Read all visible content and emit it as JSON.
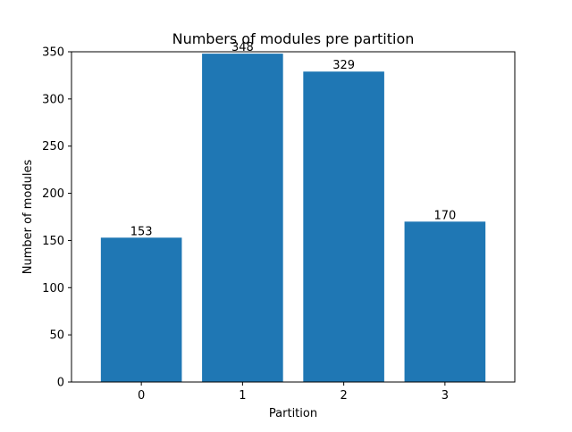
{
  "chart_data": {
    "type": "bar",
    "title": "Numbers of modules pre partition",
    "xlabel": "Partition",
    "ylabel": "Number of modules",
    "categories": [
      "0",
      "1",
      "2",
      "3"
    ],
    "values": [
      153,
      348,
      329,
      170
    ],
    "data_labels": [
      "153",
      "348",
      "329",
      "170"
    ],
    "ylim": [
      0,
      350
    ],
    "yticks": [
      0,
      50,
      100,
      150,
      200,
      250,
      300,
      350
    ],
    "grid": false,
    "legend": "none",
    "bar_color": "#1f77b4"
  }
}
